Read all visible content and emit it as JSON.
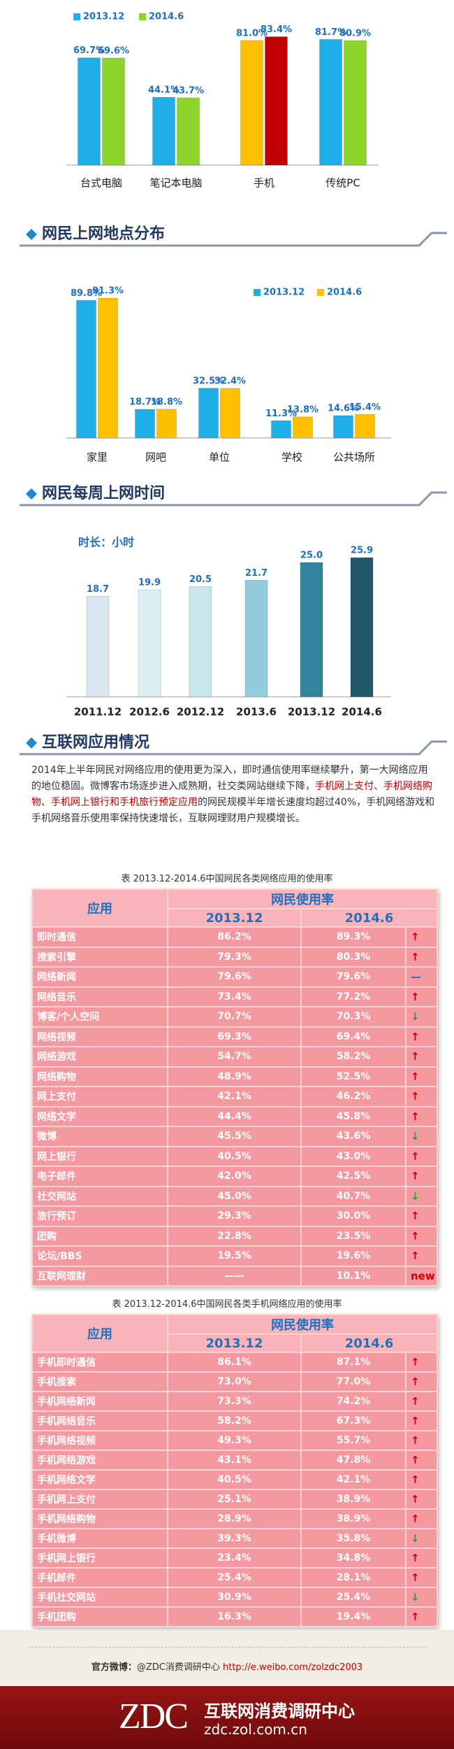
{
  "chart_data": [
    {
      "type": "bar",
      "categories": [
        "台式电脑",
        "笔记本电脑",
        "手机",
        "传统PC"
      ],
      "series": [
        {
          "name": "2013.12",
          "color": "#1eaee8",
          "colors": [
            "#1eaee8",
            "#1eaee8",
            "#ffc000",
            "#1eaee8"
          ],
          "values": [
            69.7,
            44.1,
            81.0,
            81.7
          ],
          "value_labels": [
            "69.7%",
            "44.1%",
            "81.0%",
            "81.7%"
          ]
        },
        {
          "name": "2014.6",
          "color": "#8dd42a",
          "colors": [
            "#8dd42a",
            "#8dd42a",
            "#c00000",
            "#8dd42a"
          ],
          "values": [
            69.6,
            43.7,
            83.4,
            80.9
          ],
          "value_labels": [
            "69.6%",
            "43.7%",
            "83.4%",
            "80.9%"
          ]
        }
      ]
    },
    {
      "type": "bar",
      "title": "网民上网地点分布",
      "categories": [
        "家里",
        "网吧",
        "单位",
        "学校",
        "公共场所"
      ],
      "series": [
        {
          "name": "2013.12",
          "color": "#1eaee8",
          "colors": [
            "#1eaee8",
            "#1eaee8",
            "#1eaee8",
            "#1eaee8",
            "#1eaee8"
          ],
          "values": [
            89.8,
            18.7,
            32.5,
            11.3,
            14.6
          ],
          "value_labels": [
            "89.8%",
            "18.7%",
            "32.5%",
            "11.3%",
            "14.6%"
          ]
        },
        {
          "name": "2014.6",
          "color": "#ffc000",
          "colors": [
            "#ffc000",
            "#ffc000",
            "#ffc000",
            "#ffc000",
            "#ffc000"
          ],
          "values": [
            91.3,
            18.8,
            32.4,
            13.8,
            15.4
          ],
          "value_labels": [
            "91.3%",
            "18.8%",
            "32.4%",
            "13.8%",
            "15.4%"
          ]
        }
      ]
    },
    {
      "type": "bar",
      "title": "网民每周上网时间",
      "subtitle": "时长：小时",
      "categories": [
        "2011.12",
        "2012.6",
        "2012.12",
        "2013.6",
        "2013.12",
        "2014.6"
      ],
      "series": [
        {
          "colors": [
            "#dce6f0",
            "#dbeef3",
            "#c9e6ee",
            "#93cddd",
            "#31849b",
            "#215868"
          ],
          "values": [
            18.7,
            19.9,
            20.5,
            21.7,
            25.0,
            25.9
          ],
          "value_labels": [
            "18.7",
            "19.9",
            "20.5",
            "21.7",
            "25.0",
            "25.9"
          ]
        }
      ]
    }
  ],
  "app_section": {
    "title": "互联网应用情况",
    "intro": [
      {
        "text": "2014年上半年网民对网络应用的使用更为深入，即时通信使用率继续攀升，第一大网络应用的地位稳固。微博客市场逐步进入成熟期，社交类网站继续下降，",
        "color": "#333333"
      },
      {
        "text": "手机网上支付、手机网络购物、手机网上银行和手机旅行预定应用",
        "color": "#c00000"
      },
      {
        "text": "的网民规模半年增长速度均超过40%，手机网络游戏和手机网络音乐使用率保持快速增长，互联网理财用户规模增长。",
        "color": "#333333"
      }
    ],
    "tables": [
      {
        "caption": "表 2013.12-2014.6中国网民各类网络应用的使用率",
        "header": {
          "first": "应用",
          "group": "网民使用率",
          "columns": [
            "2013.12",
            "2014.6"
          ]
        },
        "rows": [
          [
            "即时通信",
            "86.2%",
            "89.3%",
            "↑"
          ],
          [
            "搜索引擎",
            "79.3%",
            "80.3%",
            "↑"
          ],
          [
            "网络新闻",
            "79.6%",
            "79.6%",
            "—"
          ],
          [
            "网络音乐",
            "73.4%",
            "77.2%",
            "↑"
          ],
          [
            "博客/个人空间",
            "70.7%",
            "70.3%",
            "↓"
          ],
          [
            "网络视频",
            "69.3%",
            "69.4%",
            "↑"
          ],
          [
            "网络游戏",
            "54.7%",
            "58.2%",
            "↑"
          ],
          [
            "网络购物",
            "48.9%",
            "52.5%",
            "↑"
          ],
          [
            "网上支付",
            "42.1%",
            "46.2%",
            "↑"
          ],
          [
            "网络文学",
            "44.4%",
            "45.8%",
            "↑"
          ],
          [
            "微博",
            "45.5%",
            "43.6%",
            "↓"
          ],
          [
            "网上银行",
            "40.5%",
            "43.0%",
            "↑"
          ],
          [
            "电子邮件",
            "42.0%",
            "42.5%",
            "↑"
          ],
          [
            "社交网站",
            "45.0%",
            "40.7%",
            "↓"
          ],
          [
            "旅行预订",
            "29.3%",
            "30.0%",
            "↑"
          ],
          [
            "团购",
            "22.8%",
            "23.5%",
            "↑"
          ],
          [
            "论坛/BBS",
            "19.5%",
            "19.6%",
            "↑"
          ],
          [
            "互联网理财",
            "——",
            "10.1%",
            "new"
          ]
        ],
        "trend_colors": [
          "#d00000",
          "#d00000",
          "#2f6fd0",
          "#d00000",
          "#2ea02e",
          "#d00000",
          "#d00000",
          "#d00000",
          "#d00000",
          "#d00000",
          "#2ea02e",
          "#d00000",
          "#d00000",
          "#2ea02e",
          "#d00000",
          "#d00000",
          "#d00000",
          "#d00000"
        ]
      },
      {
        "caption": "表 2013.12-2014.6中国网民各类手机网络应用的使用率",
        "header": {
          "first": "应用",
          "group": "网民使用率",
          "columns": [
            "2013.12",
            "2014.6"
          ]
        },
        "rows": [
          [
            "手机即时通信",
            "86.1%",
            "87.1%",
            "↑"
          ],
          [
            "手机搜索",
            "73.0%",
            "77.0%",
            "↑"
          ],
          [
            "手机网络新闻",
            "73.3%",
            "74.2%",
            "↑"
          ],
          [
            "手机网络音乐",
            "58.2%",
            "67.3%",
            "↑"
          ],
          [
            "手机网络视频",
            "49.3%",
            "55.7%",
            "↑"
          ],
          [
            "手机网络游戏",
            "43.1%",
            "47.8%",
            "↑"
          ],
          [
            "手机网络文学",
            "40.5%",
            "42.1%",
            "↑"
          ],
          [
            "手机网上支付",
            "25.1%",
            "38.9%",
            "↑"
          ],
          [
            "手机网络购物",
            "28.9%",
            "38.9%",
            "↑"
          ],
          [
            "手机微博",
            "39.3%",
            "35.8%",
            "↓"
          ],
          [
            "手机网上银行",
            "23.4%",
            "34.8%",
            "↑"
          ],
          [
            "手机邮件",
            "25.4%",
            "28.1%",
            "↑"
          ],
          [
            "手机社交网站",
            "30.9%",
            "25.4%",
            "↓"
          ],
          [
            "手机团购",
            "16.3%",
            "19.4%",
            "↑"
          ]
        ],
        "trend_colors": [
          "#d00000",
          "#d00000",
          "#d00000",
          "#d00000",
          "#d00000",
          "#d00000",
          "#d00000",
          "#d00000",
          "#d00000",
          "#2ea02e",
          "#d00000",
          "#d00000",
          "#2ea02e",
          "#d00000"
        ]
      }
    ]
  },
  "footer": {
    "label": "官方微博：",
    "account": "@ZDC消费调研中心",
    "url": "http://e.weibo.com/zolzdc2003"
  },
  "brand": {
    "logo": "ZDC",
    "name": "互联网消费调研中心",
    "site": "zdc.zol.com.cn"
  }
}
